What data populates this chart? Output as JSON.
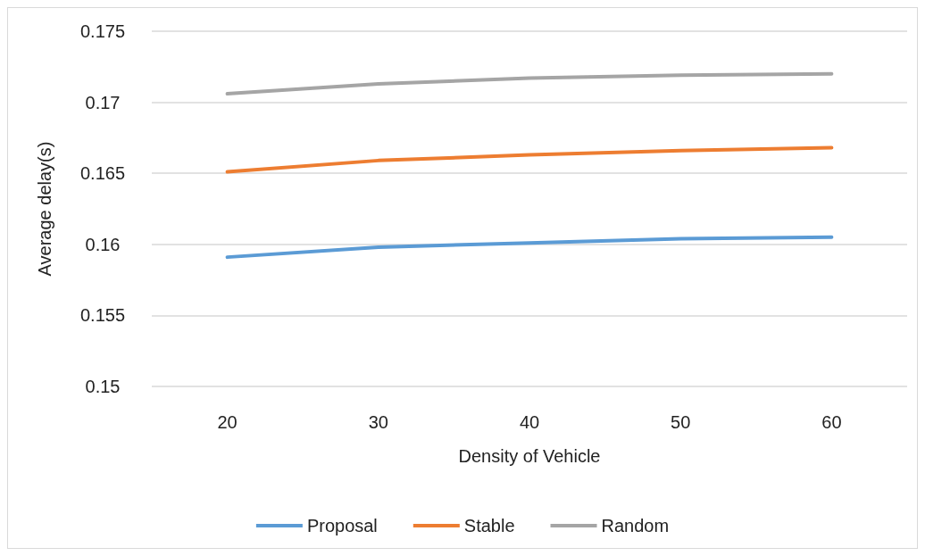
{
  "chart_data": {
    "type": "line",
    "xlabel": "Density of Vehicle",
    "ylabel": "Average delay(s)",
    "categories": [
      "20",
      "30",
      "40",
      "50",
      "60"
    ],
    "series": [
      {
        "name": "Proposal",
        "color": "#5b9bd5",
        "values": [
          0.1591,
          0.1598,
          0.1601,
          0.1604,
          0.1605
        ]
      },
      {
        "name": "Stable",
        "color": "#ed7d31",
        "values": [
          0.1651,
          0.1659,
          0.1663,
          0.1666,
          0.1668
        ]
      },
      {
        "name": "Random",
        "color": "#a5a5a5",
        "values": [
          0.1706,
          0.1713,
          0.1717,
          0.1719,
          0.172
        ]
      }
    ],
    "ylim": [
      0.15,
      0.175
    ],
    "yticks": [
      0.15,
      0.155,
      0.16,
      0.165,
      0.17,
      0.175
    ],
    "grid": "y",
    "legend": "bottom",
    "marker": "none",
    "line_style": "solid"
  }
}
